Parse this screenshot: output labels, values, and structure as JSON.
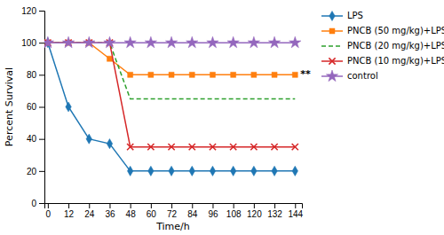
{
  "chart_data": {
    "type": "line",
    "x": [
      0,
      12,
      24,
      36,
      48,
      60,
      72,
      84,
      96,
      108,
      120,
      132,
      144
    ],
    "series": [
      {
        "name": "LPS",
        "values": [
          100,
          60,
          40,
          37,
          20,
          20,
          20,
          20,
          20,
          20,
          20,
          20,
          20
        ],
        "marker": "diamond",
        "line_style": "solid"
      },
      {
        "name": "PNCB (50 mg/kg)+LPS",
        "values": [
          100,
          100,
          100,
          90,
          80,
          80,
          80,
          80,
          80,
          80,
          80,
          80,
          80
        ],
        "marker": "square",
        "line_style": "solid"
      },
      {
        "name": "PNCB (20 mg/kg)+LPS",
        "values": [
          100,
          100,
          100,
          100,
          65,
          65,
          65,
          65,
          65,
          65,
          65,
          65,
          65
        ],
        "marker": "none",
        "line_style": "dashed"
      },
      {
        "name": "PNCB (10 mg/kg)+LPS",
        "values": [
          100,
          100,
          100,
          100,
          35,
          35,
          35,
          35,
          35,
          35,
          35,
          35,
          35
        ],
        "marker": "x",
        "line_style": "solid"
      },
      {
        "name": "control",
        "values": [
          100,
          100,
          100,
          100,
          100,
          100,
          100,
          100,
          100,
          100,
          100,
          100,
          100
        ],
        "marker": "star",
        "line_style": "solid"
      }
    ],
    "xlim": [
      -2,
      148
    ],
    "ylim": [
      0,
      120
    ],
    "xticks": [
      0,
      12,
      24,
      36,
      48,
      60,
      72,
      84,
      96,
      108,
      120,
      132,
      144
    ],
    "yticks": [
      0,
      20,
      40,
      60,
      80,
      100,
      120
    ],
    "xlabel": "Time/h",
    "ylabel": "Percent Survival",
    "annotations": [
      {
        "text": "**",
        "x": 144,
        "y": 80
      }
    ],
    "legend": "right",
    "grid": false
  }
}
